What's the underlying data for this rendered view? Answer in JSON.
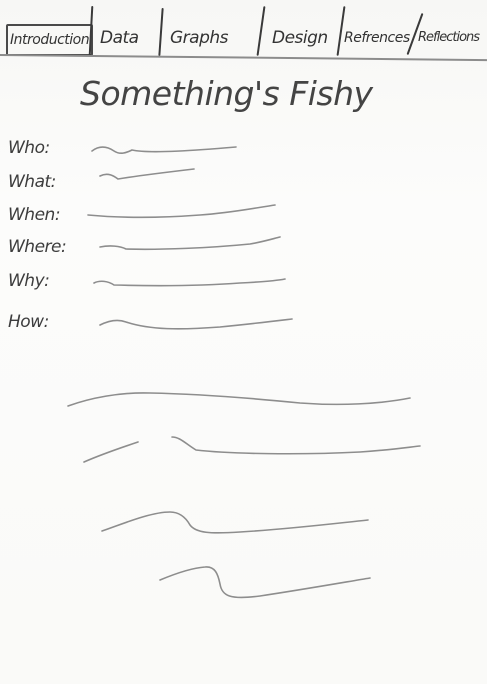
{
  "tabs": {
    "items": [
      {
        "label": "Introduction",
        "active": true
      },
      {
        "label": "Data"
      },
      {
        "label": "Graphs"
      },
      {
        "label": "Design"
      },
      {
        "label": "Refrences"
      },
      {
        "label": "Reflections"
      }
    ]
  },
  "page": {
    "title": "Something's Fishy",
    "fields": [
      {
        "label": "Who:"
      },
      {
        "label": "What:"
      },
      {
        "label": "When:"
      },
      {
        "label": "Where:"
      },
      {
        "label": "Why:"
      },
      {
        "label": "How:"
      }
    ]
  },
  "colors": {
    "paper": "#fbfbfa",
    "ink": "#3a3a3a",
    "pencil": "#8d8d8d"
  }
}
